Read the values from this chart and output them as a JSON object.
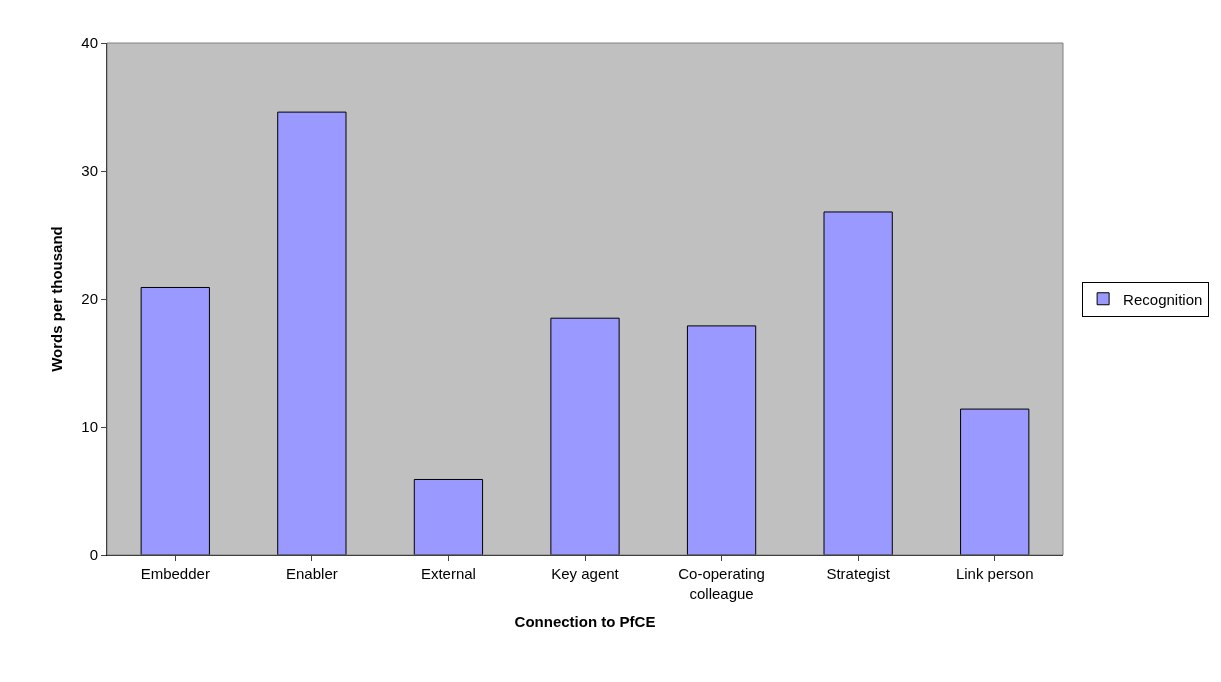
{
  "chart_data": {
    "type": "bar",
    "xlabel": "Connection to PfCE",
    "ylabel": "Words per thousand",
    "categories": [
      "Embedder",
      "Enabler",
      "External",
      "Key agent",
      "Co-operating colleague",
      "Strategist",
      "Link person"
    ],
    "series": [
      {
        "name": "Recognition",
        "color": "#9999ff",
        "values": [
          20.9,
          34.6,
          5.9,
          18.5,
          17.9,
          26.8,
          11.4
        ]
      }
    ],
    "ylim": [
      0,
      40
    ],
    "yticks": [
      0,
      10,
      20,
      30,
      40
    ],
    "grid": false,
    "legend": "right"
  }
}
